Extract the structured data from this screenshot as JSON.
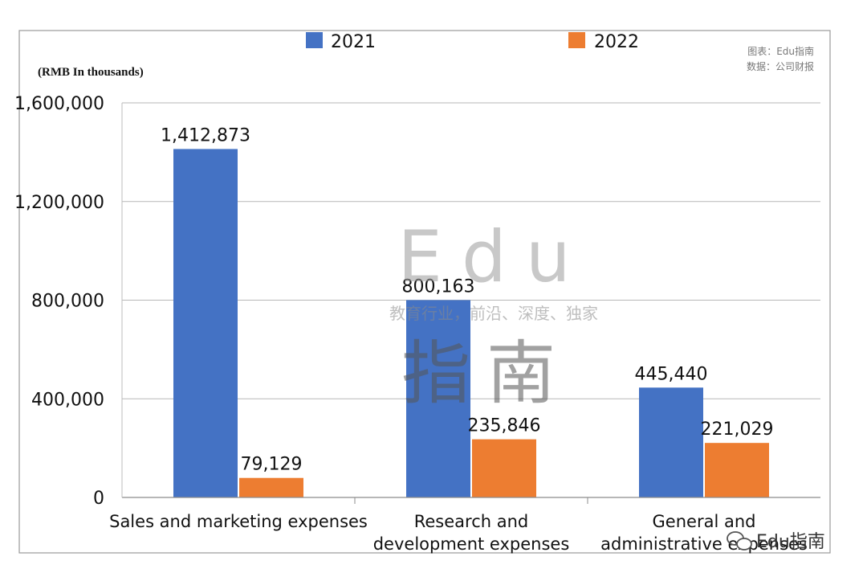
{
  "source_note": {
    "line1": "图表：Edu指南",
    "line2": "数据：公司财报"
  },
  "watermark": {
    "brand": "Edu",
    "chinese": "指南",
    "tagline": "教育行业，前沿、深度、独家"
  },
  "social_tag": "Edu指南",
  "colors": {
    "series_2021": "#4472C4",
    "series_2022": "#ED7D31",
    "grid": "#b7b7b7",
    "frame": "#9a9a9a",
    "text": "#111111"
  },
  "chart_data": {
    "type": "bar",
    "title": "",
    "unit_note": "(RMB In thousands)",
    "xlabel": "",
    "ylabel": "",
    "categories": [
      [
        "Sales and marketing expenses"
      ],
      [
        "Research and",
        "development expenses"
      ],
      [
        "General and",
        "administrative expenses"
      ]
    ],
    "series": [
      {
        "name": "2021",
        "values": [
          1412873,
          800163,
          445440
        ],
        "labels": [
          "1,412,873",
          "800,163",
          "445,440"
        ]
      },
      {
        "name": "2022",
        "values": [
          79129,
          235846,
          221029
        ],
        "labels": [
          "79,129",
          "235,846",
          "221,029"
        ]
      }
    ],
    "ylim": [
      0,
      1600000
    ],
    "yticks": [
      0,
      400000,
      800000,
      1200000,
      1600000
    ],
    "ytick_labels": [
      "0",
      "400,000",
      "800,000",
      "1,200,000",
      "1,600,000"
    ],
    "grid": true,
    "legend_position": "top"
  }
}
